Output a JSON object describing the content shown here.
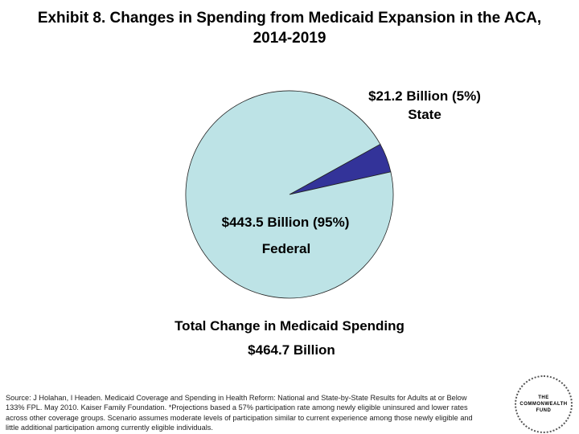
{
  "chart_data": {
    "type": "pie",
    "title": [
      "Exhibit 8. Changes in Spending from Medicaid Expansion in the ACA,",
      "2014-2019"
    ],
    "slices": [
      {
        "name": "State",
        "value": 21.2,
        "percent": 5,
        "value_label": "$21.2 Billion (5%)",
        "color": "#333399"
      },
      {
        "name": "Federal",
        "value": 443.5,
        "percent": 95,
        "value_label": "$443.5 Billion (95%)",
        "color": "#bde3e6"
      }
    ],
    "total_label": "Total Change in Medicaid Spending",
    "total_value": "$464.7 Billion"
  },
  "source": {
    "lines": [
      "Source: J Holahan, I Headen. Medicaid Coverage and Spending in Health Reform: National and State-by-State Results for Adults at or Below",
      "133% FPL. May 2010. Kaiser Family Foundation. *Projections based a 57% participation rate among newly eligible uninsured and lower rates",
      "across other coverage groups.  Scenario assumes moderate levels of participation similar to current experience among those newly eligible and",
      "little additional participation among currently eligible individuals."
    ]
  },
  "logo": {
    "line1": "THE",
    "line2": "COMMONWEALTH",
    "line3": "FUND"
  }
}
